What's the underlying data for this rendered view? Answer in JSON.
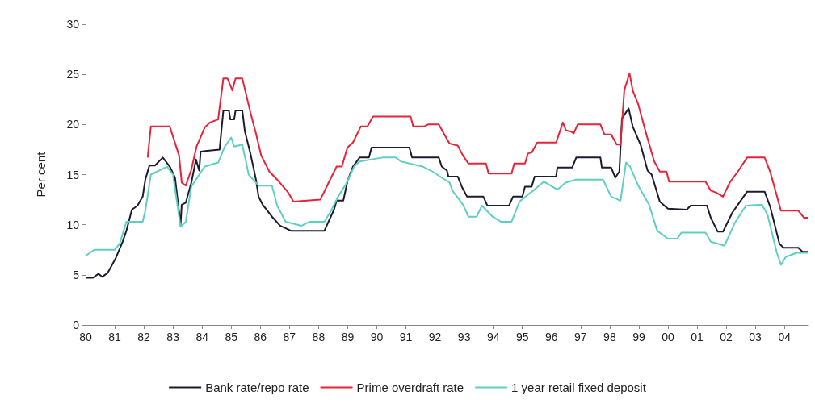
{
  "chart_data": {
    "type": "line",
    "ylabel": "Per cent",
    "ylim": [
      0,
      30
    ],
    "yticks": [
      0,
      5,
      10,
      15,
      20,
      25,
      30
    ],
    "xlim": [
      1980,
      2004.8
    ],
    "xticks": [
      {
        "value": 1980,
        "label": "80"
      },
      {
        "value": 1981,
        "label": "81"
      },
      {
        "value": 1982,
        "label": "82"
      },
      {
        "value": 1983,
        "label": "83"
      },
      {
        "value": 1984,
        "label": "84"
      },
      {
        "value": 1985,
        "label": "85"
      },
      {
        "value": 1986,
        "label": "86"
      },
      {
        "value": 1987,
        "label": "87"
      },
      {
        "value": 1988,
        "label": "88"
      },
      {
        "value": 1989,
        "label": "89"
      },
      {
        "value": 1990,
        "label": "90"
      },
      {
        "value": 1991,
        "label": "91"
      },
      {
        "value": 1992,
        "label": "92"
      },
      {
        "value": 1993,
        "label": "93"
      },
      {
        "value": 1994,
        "label": "94"
      },
      {
        "value": 1995,
        "label": "95"
      },
      {
        "value": 1996,
        "label": "96"
      },
      {
        "value": 1997,
        "label": "97"
      },
      {
        "value": 1998,
        "label": "98"
      },
      {
        "value": 1999,
        "label": "99"
      },
      {
        "value": 2000,
        "label": "00"
      },
      {
        "value": 2001,
        "label": "01"
      },
      {
        "value": 2002,
        "label": "02"
      },
      {
        "value": 2003,
        "label": "03"
      },
      {
        "value": 2004,
        "label": "04"
      }
    ],
    "grid": false,
    "legend": "bottom",
    "marker": "none",
    "line_style": "solid",
    "series": [
      {
        "name": "Bank rate/repo rate",
        "color": "#1c1c30",
        "x": [
          1980.0,
          1980.25,
          1980.44,
          1980.57,
          1980.76,
          1981.04,
          1981.27,
          1981.4,
          1981.59,
          1981.78,
          1981.96,
          1982.05,
          1982.19,
          1982.38,
          1982.65,
          1982.89,
          1983.07,
          1983.26,
          1983.3,
          1983.44,
          1983.63,
          1983.79,
          1983.9,
          1983.95,
          1984.6,
          1984.73,
          1984.92,
          1984.97,
          1985.1,
          1985.15,
          1985.38,
          1985.47,
          1985.66,
          1985.85,
          1985.94,
          1986.08,
          1986.4,
          1986.68,
          1987.05,
          1988.2,
          1988.53,
          1988.62,
          1988.85,
          1988.99,
          1989.18,
          1989.41,
          1989.73,
          1989.82,
          1991.12,
          1991.21,
          1992.13,
          1992.23,
          1992.41,
          1992.46,
          1992.78,
          1992.92,
          1993.1,
          1993.66,
          1993.8,
          1994.54,
          1994.68,
          1995.0,
          1995.09,
          1995.32,
          1995.42,
          1996.16,
          1996.2,
          1996.71,
          1996.85,
          1997.68,
          1997.73,
          1998.05,
          1998.19,
          1998.33,
          1998.42,
          1998.65,
          1998.79,
          1999.07,
          1999.3,
          1999.44,
          1999.72,
          2000.0,
          2000.64,
          2000.78,
          2001.34,
          2001.47,
          2001.71,
          2001.89,
          2002.21,
          2002.45,
          2002.72,
          2003.32,
          2003.51,
          2003.83,
          2003.97,
          2004.48,
          2004.62,
          2004.8
        ],
        "values": [
          4.7,
          4.7,
          5.1,
          4.8,
          5.2,
          6.7,
          8.3,
          9.4,
          11.5,
          11.9,
          12.8,
          14.5,
          15.9,
          15.9,
          16.7,
          15.8,
          14.7,
          10.0,
          12.0,
          12.2,
          14.2,
          16.5,
          15.4,
          17.3,
          17.5,
          21.4,
          21.4,
          20.5,
          20.5,
          21.4,
          21.4,
          19.3,
          17.1,
          14.5,
          12.8,
          12.0,
          10.8,
          9.9,
          9.4,
          9.4,
          11.5,
          12.4,
          12.4,
          14.3,
          15.8,
          16.7,
          16.7,
          17.7,
          17.7,
          16.7,
          16.7,
          15.8,
          15.4,
          14.8,
          14.8,
          13.8,
          12.8,
          12.8,
          11.9,
          11.9,
          12.8,
          12.8,
          13.8,
          13.8,
          14.8,
          14.8,
          15.7,
          15.7,
          16.7,
          16.7,
          15.7,
          15.7,
          14.7,
          15.3,
          20.6,
          21.6,
          19.8,
          17.9,
          15.4,
          15.0,
          12.3,
          11.6,
          11.5,
          11.9,
          11.9,
          10.7,
          9.3,
          9.3,
          11.2,
          12.2,
          13.3,
          13.3,
          11.8,
          8.1,
          7.7,
          7.7,
          7.3,
          7.3
        ]
      },
      {
        "name": "Prime overdraft rate",
        "color": "#e3243b",
        "x": [
          1982.13,
          1982.24,
          1982.89,
          1983.02,
          1983.21,
          1983.3,
          1983.44,
          1983.63,
          1983.81,
          1984.09,
          1984.27,
          1984.55,
          1984.73,
          1984.87,
          1985.04,
          1985.15,
          1985.38,
          1985.66,
          1985.85,
          1986.03,
          1986.31,
          1986.58,
          1986.96,
          1987.14,
          1988.06,
          1988.43,
          1988.62,
          1988.8,
          1988.99,
          1989.18,
          1989.45,
          1989.68,
          1989.87,
          1991.16,
          1991.25,
          1991.63,
          1991.76,
          1992.13,
          1992.32,
          1992.5,
          1992.78,
          1992.96,
          1993.15,
          1993.75,
          1993.84,
          1994.63,
          1994.72,
          1995.09,
          1995.19,
          1995.32,
          1995.51,
          1996.16,
          1996.39,
          1996.5,
          1996.67,
          1996.76,
          1996.9,
          1997.68,
          1997.82,
          1998.05,
          1998.24,
          1998.37,
          1998.5,
          1998.68,
          1998.79,
          1998.98,
          1999.26,
          1999.53,
          1999.72,
          1999.95,
          2000.04,
          2001.29,
          2001.47,
          2001.66,
          2001.89,
          2002.12,
          2002.4,
          2002.72,
          2003.32,
          2003.51,
          2003.88,
          2004.48,
          2004.67,
          2004.8
        ],
        "values": [
          16.7,
          19.8,
          19.8,
          18.6,
          16.9,
          14.2,
          13.9,
          15.5,
          17.8,
          19.7,
          20.2,
          20.5,
          24.6,
          24.6,
          23.4,
          24.6,
          24.6,
          21.2,
          19.1,
          16.9,
          15.3,
          14.5,
          13.2,
          12.3,
          12.5,
          14.7,
          15.8,
          15.8,
          17.7,
          18.2,
          19.8,
          19.8,
          20.8,
          20.8,
          19.8,
          19.8,
          20.0,
          20.0,
          19.0,
          18.1,
          17.9,
          16.9,
          16.1,
          16.1,
          15.1,
          15.1,
          16.1,
          16.1,
          17.1,
          17.2,
          18.2,
          18.2,
          20.2,
          19.4,
          19.3,
          19.1,
          20.0,
          20.0,
          19.0,
          19.0,
          18.0,
          18.0,
          23.4,
          25.1,
          23.4,
          22.0,
          19.0,
          16.3,
          15.3,
          15.3,
          14.3,
          14.3,
          13.4,
          13.2,
          12.8,
          14.2,
          15.3,
          16.7,
          16.7,
          15.3,
          11.4,
          11.4,
          10.7,
          10.7
        ]
      },
      {
        "name": "1 year retail fixed deposit",
        "color": "#5fcfc3",
        "x": [
          1980.0,
          1980.3,
          1981.0,
          1981.17,
          1981.4,
          1981.96,
          1982.05,
          1982.24,
          1982.8,
          1983.0,
          1983.26,
          1983.44,
          1983.63,
          1984.09,
          1984.55,
          1984.78,
          1985.0,
          1985.1,
          1985.38,
          1985.6,
          1985.94,
          1986.4,
          1986.58,
          1986.87,
          1987.42,
          1987.7,
          1988.2,
          1988.43,
          1988.67,
          1988.99,
          1989.22,
          1989.41,
          1990.19,
          1990.65,
          1990.84,
          1991.58,
          1991.86,
          1992.23,
          1992.5,
          1992.6,
          1992.96,
          1993.15,
          1993.43,
          1993.61,
          1993.98,
          1994.26,
          1994.63,
          1994.9,
          1995.37,
          1995.74,
          1996.2,
          1996.48,
          1996.85,
          1997.77,
          1998.05,
          1998.37,
          1998.56,
          1998.7,
          1998.98,
          1999.35,
          1999.63,
          2000.0,
          2000.32,
          2000.46,
          2001.29,
          2001.47,
          2001.94,
          2002.3,
          2002.68,
          2003.23,
          2003.42,
          2003.74,
          2003.88,
          2004.05,
          2004.42,
          2004.8
        ],
        "values": [
          6.9,
          7.5,
          7.5,
          8.1,
          10.3,
          10.3,
          11.4,
          15.0,
          15.8,
          15.0,
          9.8,
          10.3,
          13.8,
          15.8,
          16.2,
          17.8,
          18.7,
          17.8,
          18.0,
          15.0,
          13.9,
          13.9,
          11.9,
          10.3,
          9.9,
          10.3,
          10.3,
          11.4,
          12.8,
          14.3,
          15.8,
          16.3,
          16.7,
          16.7,
          16.3,
          15.8,
          15.4,
          14.7,
          14.2,
          13.4,
          12.0,
          10.8,
          10.8,
          11.9,
          10.8,
          10.3,
          10.3,
          12.3,
          13.4,
          14.3,
          13.5,
          14.2,
          14.5,
          14.5,
          12.8,
          12.4,
          16.2,
          15.8,
          13.9,
          12.0,
          9.4,
          8.6,
          8.6,
          9.2,
          9.2,
          8.3,
          7.9,
          10.2,
          11.9,
          12.0,
          11.0,
          7.2,
          6.0,
          6.8,
          7.2,
          7.2
        ]
      }
    ]
  }
}
